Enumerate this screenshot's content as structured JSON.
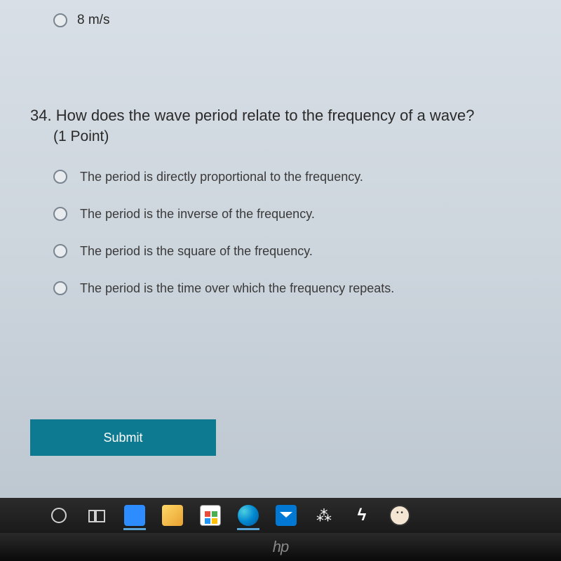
{
  "previous_question": {
    "option_text": "8 m/s"
  },
  "question": {
    "number": "34.",
    "text": "How does the wave period relate to the frequency of a wave?",
    "points": "(1 Point)",
    "options": [
      "The period is directly proportional to the frequency.",
      "The period is the inverse of the frequency.",
      "The period is the square of the frequency.",
      "The period is the time over which the frequency repeats."
    ]
  },
  "submit_label": "Submit",
  "colors": {
    "submit_bg": "#0d7a92",
    "submit_text": "#ffffff",
    "page_bg_top": "#d8dfe6",
    "page_bg_bottom": "#bec8d1",
    "text": "#2a2a2a",
    "radio_border": "#7a8590"
  },
  "laptop_brand": "hp"
}
